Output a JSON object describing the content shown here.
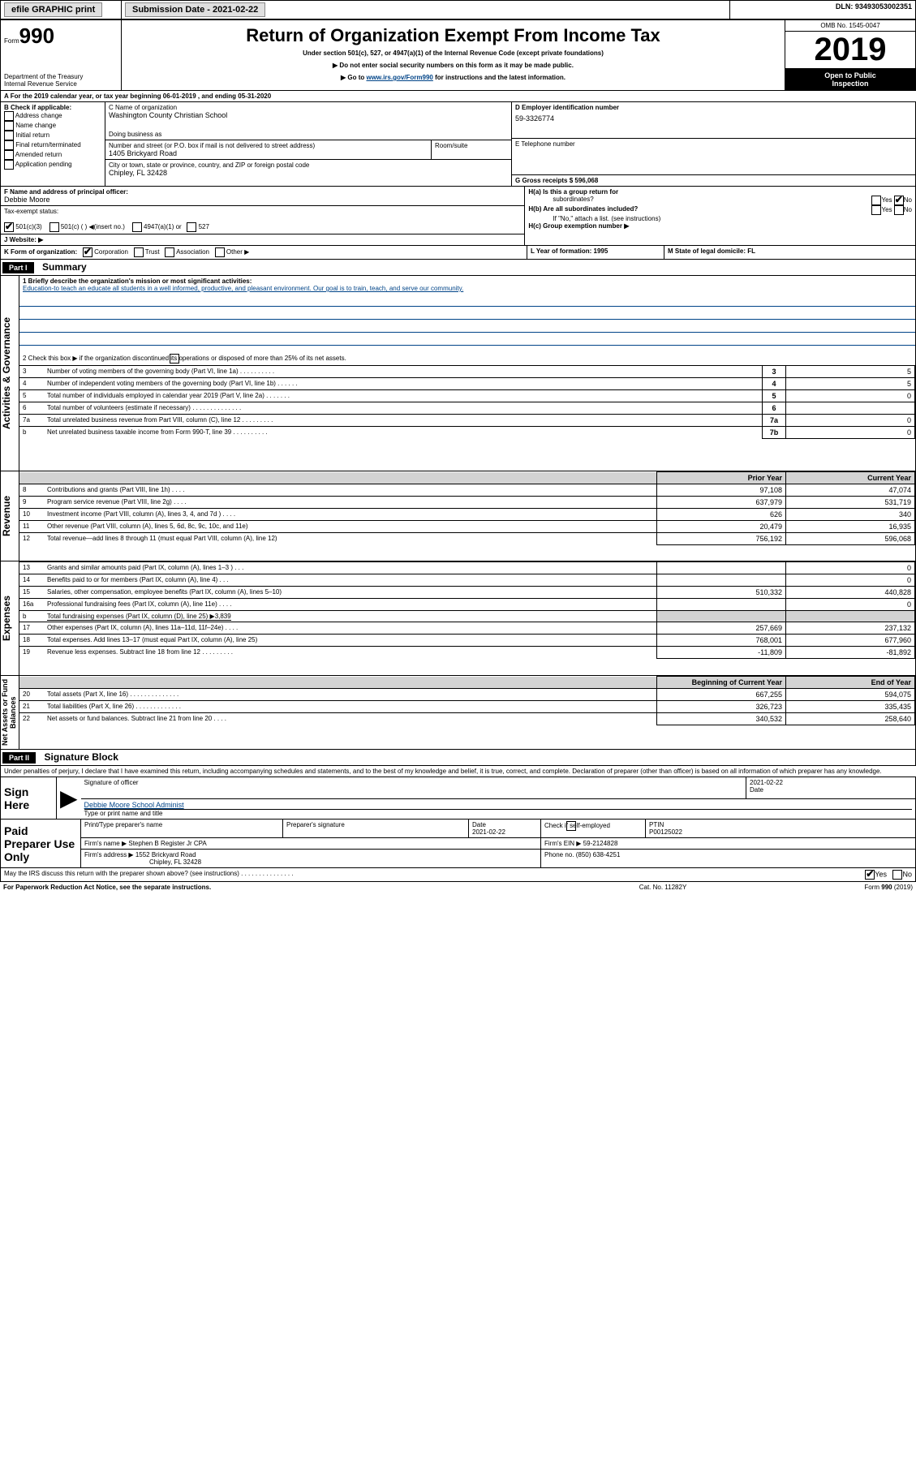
{
  "header": {
    "efile_label": "efile GRAPHIC print",
    "submission_label": "Submission Date - 2021-02-22",
    "dln_label": "DLN: 93493053002351"
  },
  "title_block": {
    "form_label": "Form",
    "form_number": "990",
    "title": "Return of Organization Exempt From Income Tax",
    "subtitle": "Under section 501(c), 527, or 4947(a)(1) of the Internal Revenue Code (except private foundations)",
    "note1": "▶ Do not enter social security numbers on this form as it may be made public.",
    "note2_a": "▶ Go to ",
    "note2_link": "www.irs.gov/Form990",
    "note2_b": " for instructions and the latest information.",
    "dept": "Department of the Treasury",
    "irs": "Internal Revenue Service",
    "omb": "OMB No. 1545-0047",
    "year": "2019",
    "open_a": "Open to Public",
    "open_b": "Inspection"
  },
  "sectionA": {
    "line": "A For the 2019 calendar year, or tax year beginning 06-01-2019     , and ending 05-31-2020",
    "B_label": "B Check if applicable:",
    "B_opts": [
      "Address change",
      "Name change",
      "Initial return",
      "Final return/terminated",
      "Amended return",
      "Application pending"
    ],
    "C_label": "C Name of organization",
    "org_name": "Washington County Christian School",
    "dba_label": "Doing business as",
    "addr_label": "Number and street (or P.O. box if mail is not delivered to street address)",
    "room_label": "Room/suite",
    "addr": "1405 Brickyard Road",
    "city_label": "City or town, state or province, country, and ZIP or foreign postal code",
    "city": "Chipley, FL  32428",
    "D_label": "D Employer identification number",
    "ein": "59-3326774",
    "E_label": "E Telephone number",
    "G_label": "G Gross receipts $ 596,068",
    "F_label": "F  Name and address of principal officer:",
    "officer": "Debbie Moore",
    "Ha_label": "H(a)  Is this a group return for",
    "Ha_label2": "subordinates?",
    "Hb_label": "H(b)  Are all subordinates included?",
    "Hb_note": "If \"No,\" attach a list. (see instructions)",
    "Hc_label": "H(c)  Group exemption number ▶",
    "yes": "Yes",
    "no": "No",
    "tax_status": "Tax-exempt status:",
    "s501c3": "501(c)(3)",
    "s501c": "501(c) (  )  ◀(insert no.)",
    "s4947": "4947(a)(1) or",
    "s527": "527",
    "J_label": "J    Website: ▶",
    "K_label": "K Form of organization:",
    "K_opts": [
      "Corporation",
      "Trust",
      "Association",
      "Other ▶"
    ],
    "L_label": "L Year of formation: 1995",
    "M_label": "M State of legal domicile: FL"
  },
  "partI": {
    "bar": "Part I",
    "title": "Summary",
    "vert_labels": {
      "ag": "Activities & Governance",
      "rev": "Revenue",
      "exp": "Expenses",
      "net": "Net Assets or\nFund Balances"
    },
    "line1a": "1  Briefly describe the organization's mission or most significant activities:",
    "mission": "Education-to teach an educate all students in a well informed, productive, and pleasant environment. Our goal is to train, teach, and serve our community.",
    "line2": "2   Check this box ▶        if the organization discontinued its operations or disposed of more than 25% of its net assets.",
    "rows_ag": [
      {
        "n": "3",
        "t": "Number of voting members of the governing body (Part VI, line 1a)   .   .   .   .   .   .   .   .   .   .",
        "box": "3",
        "v": "5"
      },
      {
        "n": "4",
        "t": "Number of independent voting members of the governing body (Part VI, line 1b)   .   .   .   .   .   .",
        "box": "4",
        "v": "5"
      },
      {
        "n": "5",
        "t": "Total number of individuals employed in calendar year 2019 (Part V, line 2a)   .   .   .   .   .   .   .",
        "box": "5",
        "v": "0"
      },
      {
        "n": "6",
        "t": "Total number of volunteers (estimate if necessary)    .   .   .   .   .   .   .   .   .   .   .   .   .   .",
        "box": "6",
        "v": ""
      },
      {
        "n": "7a",
        "t": "Total unrelated business revenue from Part VIII, column (C), line 12   .   .   .   .   .   .   .   .   .",
        "box": "7a",
        "v": "0"
      },
      {
        "n": "b",
        "t": "Net unrelated business taxable income from Form 990-T, line 39    .   .   .   .   .   .   .   .   .   .",
        "box": "7b",
        "v": "0"
      }
    ],
    "col_prior": "Prior Year",
    "col_curr": "Current Year",
    "rows_rev": [
      {
        "n": "8",
        "t": "Contributions and grants (Part VIII, line 1h)    .    .    .    .",
        "p": "97,108",
        "c": "47,074"
      },
      {
        "n": "9",
        "t": "Program service revenue (Part VIII, line 2g)    .    .    .    .",
        "p": "637,979",
        "c": "531,719"
      },
      {
        "n": "10",
        "t": "Investment income (Part VIII, column (A), lines 3, 4, and 7d )    .    .    .    .",
        "p": "626",
        "c": "340"
      },
      {
        "n": "11",
        "t": "Other revenue (Part VIII, column (A), lines 5, 6d, 8c, 9c, 10c, and 11e)",
        "p": "20,479",
        "c": "16,935"
      },
      {
        "n": "12",
        "t": "Total revenue—add lines 8 through 11 (must equal Part VIII, column (A), line 12)",
        "p": "756,192",
        "c": "596,068"
      }
    ],
    "rows_exp": [
      {
        "n": "13",
        "t": "Grants and similar amounts paid (Part IX, column (A), lines 1–3 )    .    .    .",
        "p": "",
        "c": "0"
      },
      {
        "n": "14",
        "t": "Benefits paid to or for members (Part IX, column (A), line 4)    .    .    .",
        "p": "",
        "c": "0"
      },
      {
        "n": "15",
        "t": "Salaries, other compensation, employee benefits (Part IX, column (A), lines 5–10)",
        "p": "510,332",
        "c": "440,828"
      },
      {
        "n": "16a",
        "t": "Professional fundraising fees (Part IX, column (A), line 11e)    .    .    .    .",
        "p": "",
        "c": "0"
      },
      {
        "n": "b",
        "t": "Total fundraising expenses (Part IX, column (D), line 25) ▶3,839",
        "p": null,
        "c": null,
        "shade": true
      },
      {
        "n": "17",
        "t": "Other expenses (Part IX, column (A), lines 11a–11d, 11f–24e)    .    .    .    .",
        "p": "257,669",
        "c": "237,132"
      },
      {
        "n": "18",
        "t": "Total expenses. Add lines 13–17 (must equal Part IX, column (A), line 25)",
        "p": "768,001",
        "c": "677,960"
      },
      {
        "n": "19",
        "t": "Revenue less expenses. Subtract line 18 from line 12  .   .   .   .   .   .   .   .   .",
        "p": "-11,809",
        "c": "-81,892"
      }
    ],
    "col_begin": "Beginning of Current Year",
    "col_end": "End of Year",
    "rows_net": [
      {
        "n": "20",
        "t": "Total assets (Part X, line 16)   .    .    .    .    .    .    .    .    .    .    .    .    .    .",
        "p": "667,255",
        "c": "594,075"
      },
      {
        "n": "21",
        "t": "Total liabilities (Part X, line 26)   .    .    .    .    .    .    .    .    .    .    .    .    .",
        "p": "326,723",
        "c": "335,435"
      },
      {
        "n": "22",
        "t": "Net assets or fund balances. Subtract line 21 from line 20    .    .    .    .",
        "p": "340,532",
        "c": "258,640"
      }
    ]
  },
  "partII": {
    "bar": "Part II",
    "title": "Signature Block",
    "decl": "Under penalties of perjury, I declare that I have examined this return, including accompanying schedules and statements, and to the best of my knowledge and belief, it is true, correct, and complete. Declaration of preparer (other than officer) is based on all information of which preparer has any knowledge.",
    "sign_here": "Sign Here",
    "sig_officer_label": "Signature of officer",
    "sig_date": "2021-02-22",
    "date_label": "Date",
    "officer_name": "Debbie Moore School Administ",
    "type_label": "Type or print name and title",
    "paid": "Paid Preparer Use Only",
    "prep_name_label": "Print/Type preparer's name",
    "prep_sig_label": "Preparer's signature",
    "prep_date_label": "Date",
    "prep_date": "2021-02-22",
    "check_self": "Check         if self-employed",
    "ptin_label": "PTIN",
    "ptin": "P00125022",
    "firm_name_label": "Firm's name      ▶",
    "firm_name": "Stephen B Register Jr CPA",
    "firm_ein_label": "Firm's EIN ▶",
    "firm_ein": "59-2124828",
    "firm_addr_label": "Firm's address ▶",
    "firm_addr1": "1552 Brickyard Road",
    "firm_addr2": "Chipley, FL  32428",
    "phone_label": "Phone no.",
    "phone": "(850) 638-4251",
    "discuss": "May the IRS discuss this return with the preparer shown above? (see instructions)    .   .   .   .   .   .   .   .   .   .   .   .   .   .   .",
    "footer_left": "For Paperwork Reduction Act Notice, see the separate instructions.",
    "footer_mid": "Cat. No. 11282Y",
    "footer_right": "Form 990 (2019)"
  }
}
